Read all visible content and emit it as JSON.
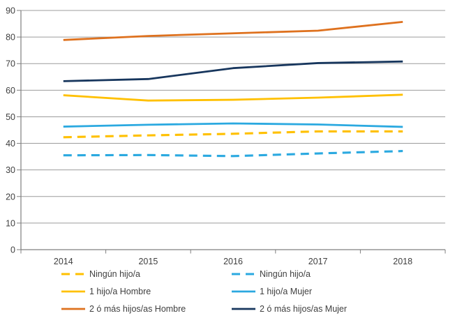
{
  "chart_data": {
    "type": "line",
    "title": "",
    "xlabel": "",
    "ylabel": "",
    "categories": [
      "2014",
      "2015",
      "2016",
      "2017",
      "2018"
    ],
    "series": [
      {
        "name": "Ningún hijo/a",
        "group": "Hombre",
        "color": "#FFC000",
        "dashed": true,
        "values": [
          42.3,
          43.0,
          43.6,
          44.5,
          44.5
        ]
      },
      {
        "name": "1 hijo/a Hombre",
        "group": "Hombre",
        "color": "#FFC000",
        "dashed": false,
        "values": [
          58.1,
          56.1,
          56.4,
          57.2,
          58.3
        ]
      },
      {
        "name": "2 ó más hijos/as Hombre",
        "group": "Hombre",
        "color": "#DE711E",
        "dashed": false,
        "values": [
          78.9,
          80.4,
          81.4,
          82.4,
          85.7
        ]
      },
      {
        "name": "Ningún hijo/a",
        "group": "Mujer",
        "color": "#2BA9E0",
        "dashed": true,
        "values": [
          35.5,
          35.6,
          35.2,
          36.2,
          37.1
        ]
      },
      {
        "name": "1 hijo/a Mujer",
        "group": "Mujer",
        "color": "#2BA9E0",
        "dashed": false,
        "values": [
          46.3,
          47.0,
          47.5,
          47.1,
          46.2
        ]
      },
      {
        "name": "2 ó más hijos/as Mujer",
        "group": "Mujer",
        "color": "#17365D",
        "dashed": false,
        "values": [
          63.4,
          64.2,
          68.3,
          70.2,
          70.8
        ]
      }
    ],
    "ylim": [
      0,
      90
    ],
    "ytick_step": 10,
    "ytick_labels": [
      "0",
      "10",
      "20",
      "30",
      "40",
      "50",
      "60",
      "70",
      "80",
      "90"
    ],
    "grid": true,
    "legend_position": "bottom",
    "legend_columns": [
      [
        0,
        1,
        2
      ],
      [
        3,
        4,
        5
      ]
    ]
  },
  "style": {
    "grid_color": "#9c9c9c",
    "axis_color": "#7f7f7f",
    "tick_label_color": "#3f3f3f",
    "background": "#ffffff"
  }
}
